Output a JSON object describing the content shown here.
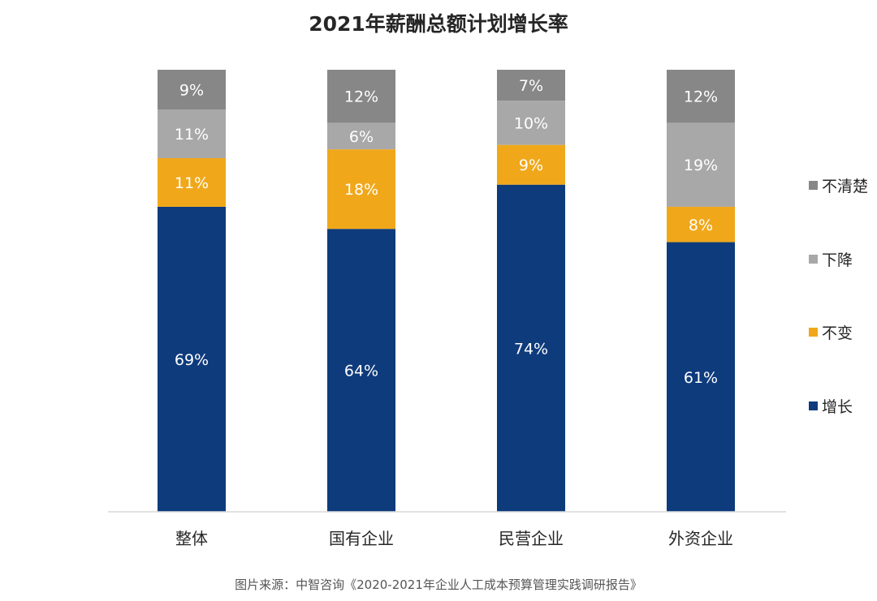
{
  "chart_data": {
    "type": "stacked-bar",
    "title": "2021年薪酬总额计划增长率",
    "categories": [
      "整体",
      "国有企业",
      "民营企业",
      "外资企业"
    ],
    "series": [
      {
        "name": "增长",
        "values": [
          69,
          64,
          74,
          61
        ],
        "color": "#0e3b7c",
        "label_color": "#ffffff"
      },
      {
        "name": "不变",
        "values": [
          11,
          18,
          9,
          8
        ],
        "color": "#f0a81a",
        "label_color": "#ffffff"
      },
      {
        "name": "下降",
        "values": [
          11,
          6,
          10,
          19
        ],
        "color": "#a8a8a8",
        "label_color": "#ffffff"
      },
      {
        "name": "不清楚",
        "values": [
          9,
          12,
          7,
          12
        ],
        "color": "#878787",
        "label_color": "#ffffff"
      }
    ],
    "value_suffix": "%",
    "ylim": [
      0,
      100
    ],
    "legend_position": "right",
    "legend_order": [
      "不清楚",
      "下降",
      "不变",
      "增长"
    ]
  },
  "source_note": "图片来源：中智咨询《2020-2021年企业人工成本预算管理实践调研报告》"
}
